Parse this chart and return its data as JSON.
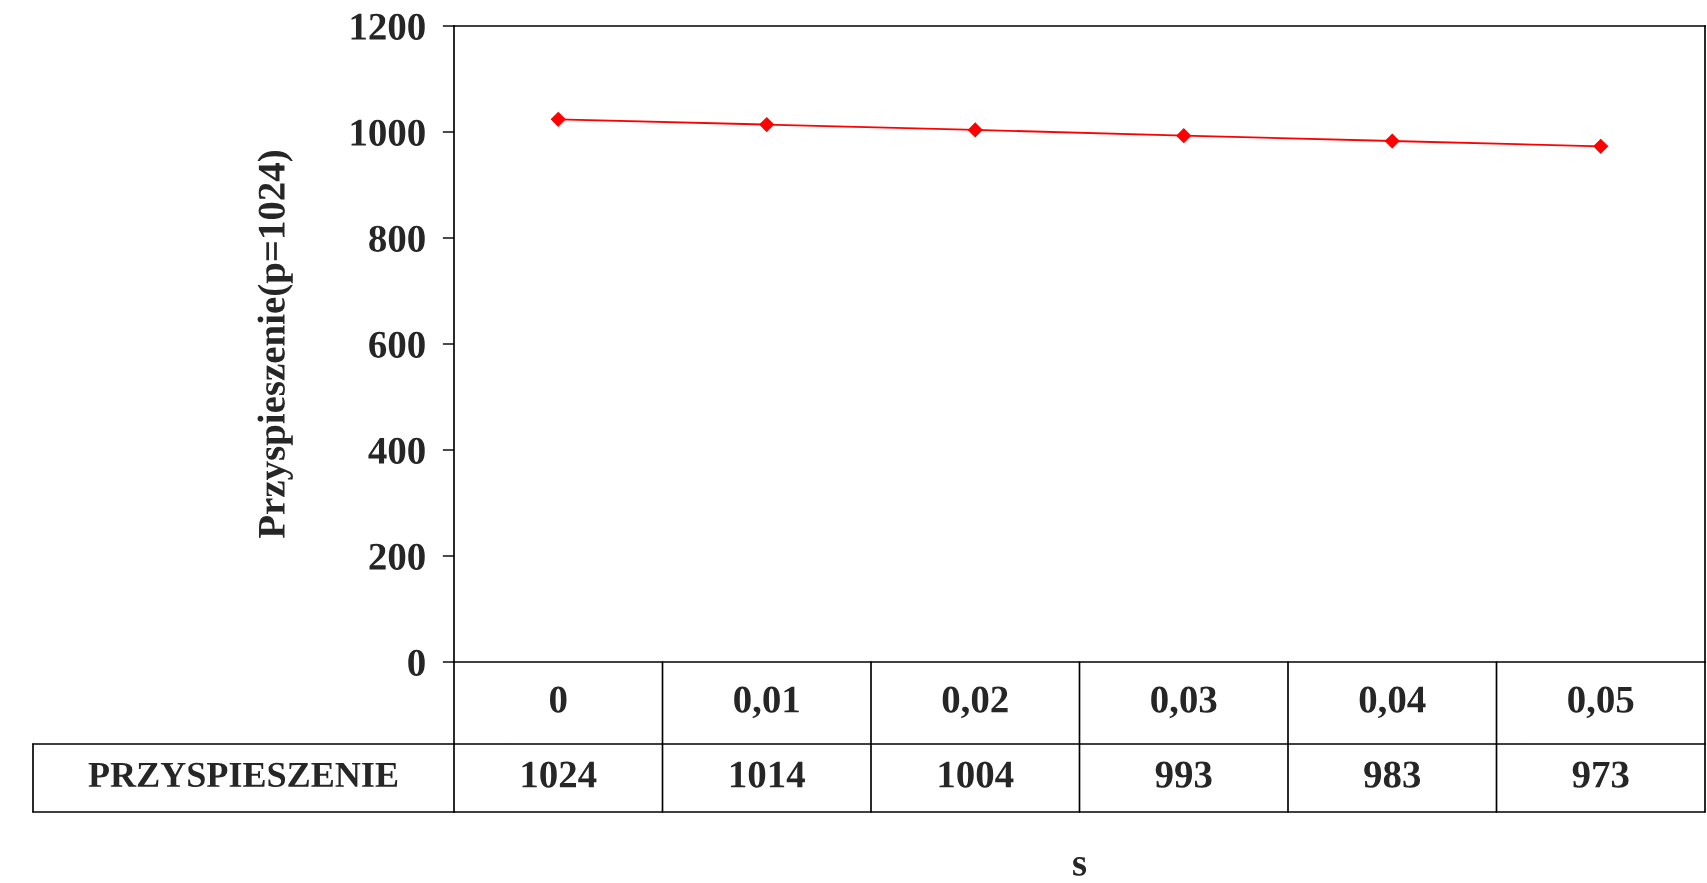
{
  "chart_data": {
    "type": "line",
    "categories": [
      "0",
      "0,01",
      "0,02",
      "0,03",
      "0,04",
      "0,05"
    ],
    "series": [
      {
        "name": "PRZYSPIESZENIE",
        "color": "#ff0000",
        "values": [
          1024,
          1014,
          1004,
          993,
          983,
          973
        ]
      }
    ],
    "ylim": [
      0,
      1200
    ],
    "yticks": [
      0,
      200,
      400,
      600,
      800,
      1000,
      1200
    ],
    "ylabel": "Przyspieszenie(p=1024)",
    "xlabel": "s",
    "marker": "diamond",
    "line_style": "solid",
    "data_labels": true
  }
}
